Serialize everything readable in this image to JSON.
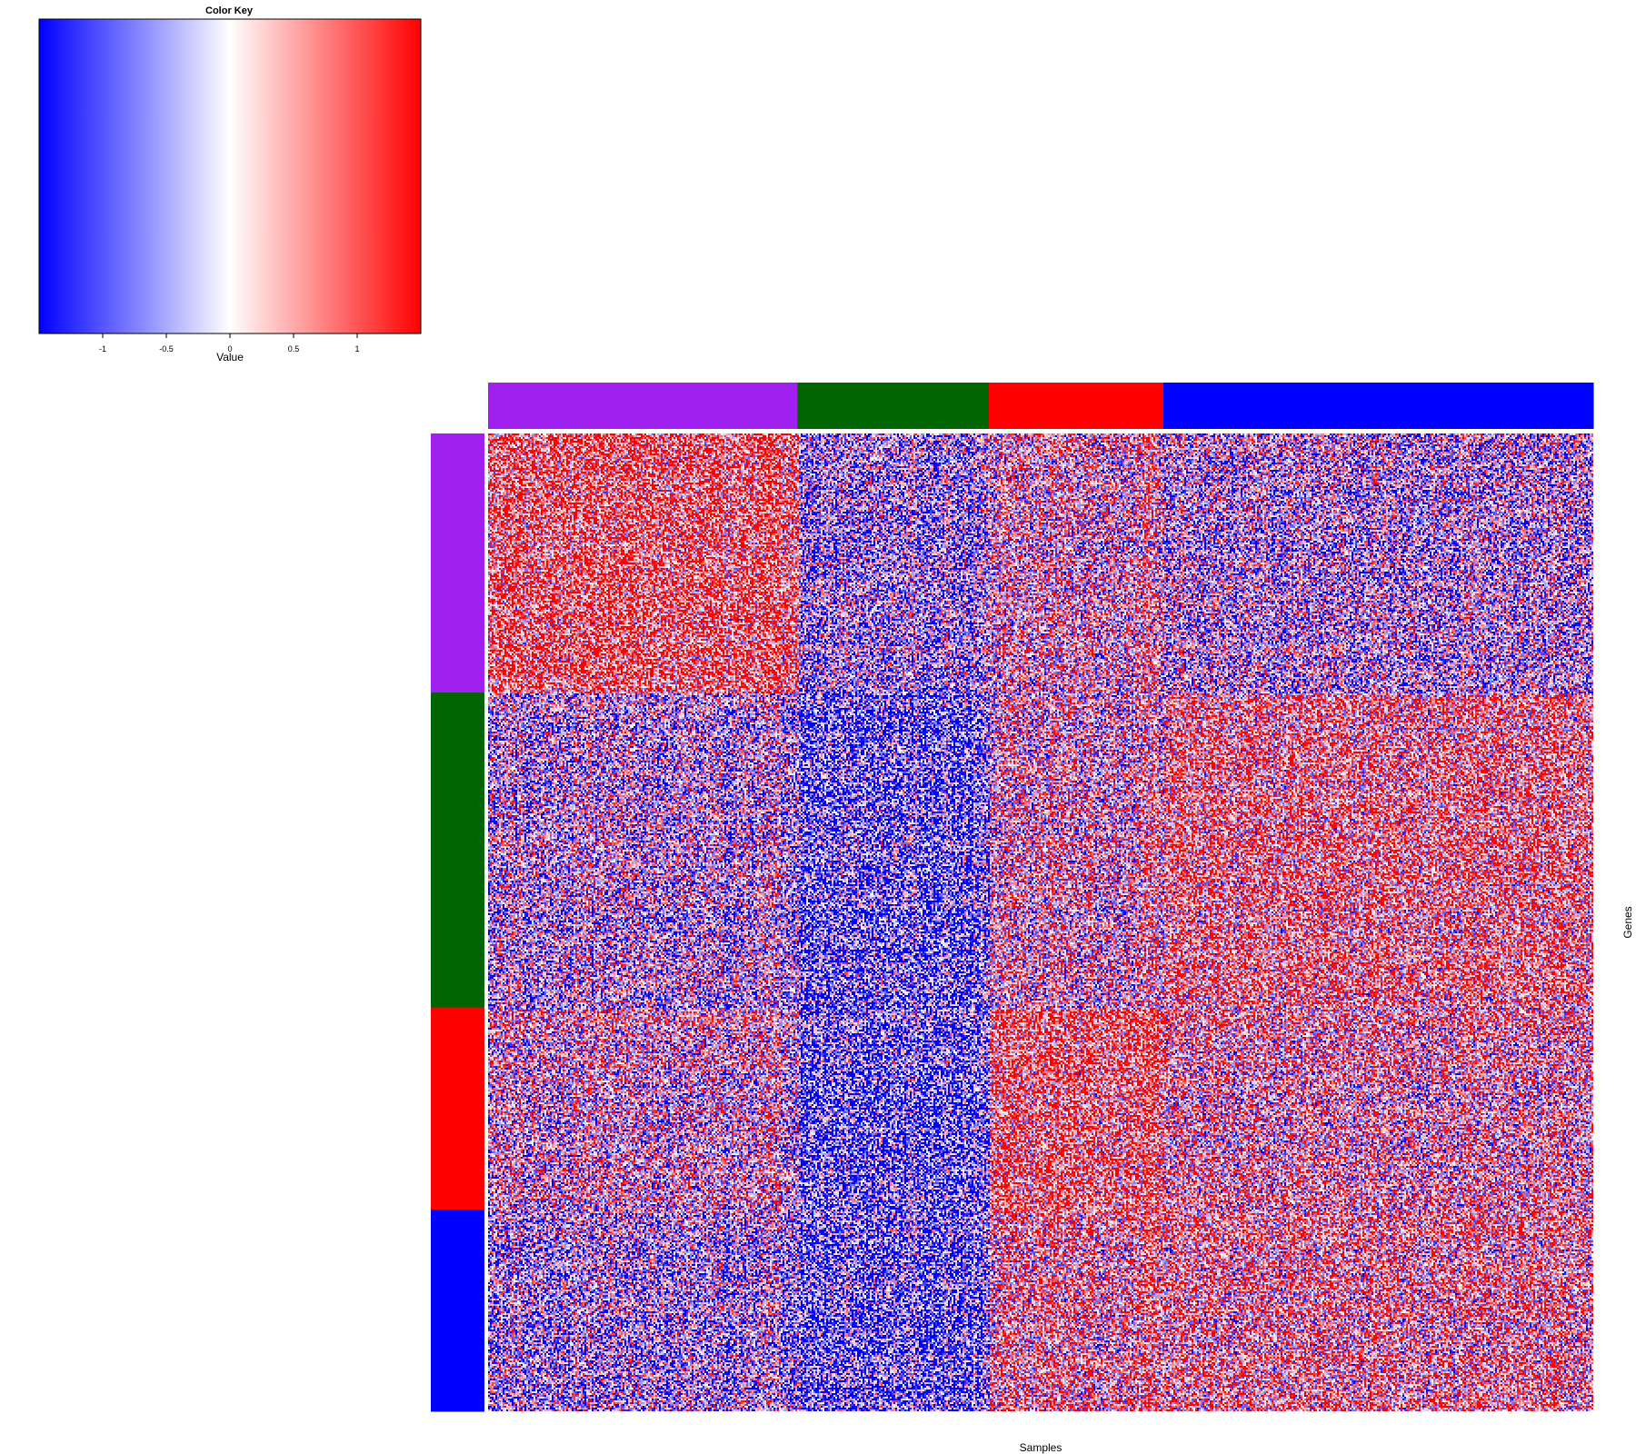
{
  "chart_data": {
    "type": "heatmap",
    "color_key": {
      "title": "Color Key",
      "xlabel": "Value",
      "range": [
        -1.5,
        1.5
      ],
      "ticks": [
        -1,
        -0.5,
        0,
        0.5,
        1
      ],
      "tick_labels": [
        "-1",
        "-0.5",
        "0",
        "0.5",
        "1"
      ],
      "colors": [
        "#0000ff",
        "#ffffff",
        "#ff0000"
      ]
    },
    "xlabel": "Samples",
    "ylabel": "Genes",
    "column_groups": [
      {
        "name": "group-purple",
        "color": "#a020f0",
        "fraction": 0.28
      },
      {
        "name": "group-green",
        "color": "#006400",
        "fraction": 0.173
      },
      {
        "name": "group-red",
        "color": "#ff0000",
        "fraction": 0.158
      },
      {
        "name": "group-blue",
        "color": "#0000ff",
        "fraction": 0.389
      }
    ],
    "row_groups": [
      {
        "name": "group-purple",
        "color": "#a020f0",
        "fraction": 0.265
      },
      {
        "name": "group-green",
        "color": "#006400",
        "fraction": 0.322
      },
      {
        "name": "group-red",
        "color": "#ff0000",
        "fraction": 0.207
      },
      {
        "name": "group-blue",
        "color": "#0000ff",
        "fraction": 0.206
      }
    ],
    "block_means": [
      [
        0.6,
        -0.3,
        0.1,
        -0.2
      ],
      [
        -0.2,
        -0.6,
        0.1,
        0.4
      ],
      [
        0.0,
        -0.6,
        0.6,
        0.2
      ],
      [
        -0.3,
        -0.6,
        0.3,
        0.3
      ]
    ]
  }
}
